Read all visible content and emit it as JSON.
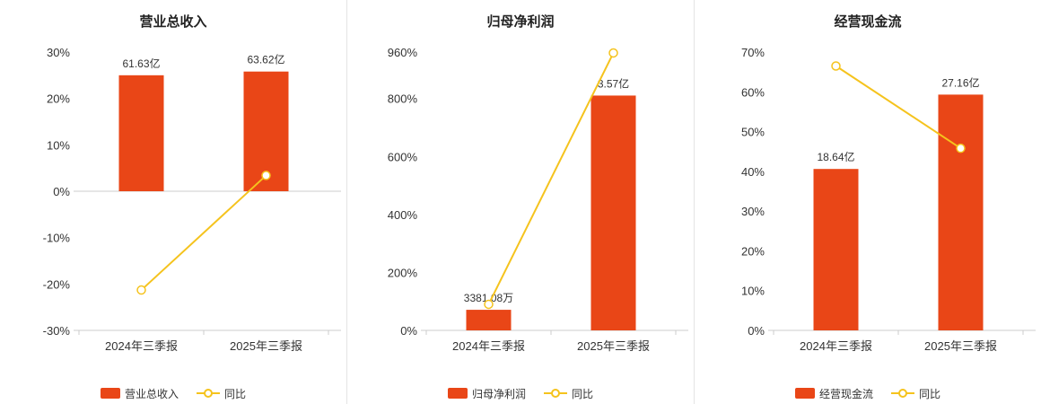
{
  "colors": {
    "bar": "#e94617",
    "line": "#f5c31d",
    "axis": "#cccccc",
    "text": "#333333",
    "title": "#222222",
    "divider": "#e4e4e4",
    "background": "#ffffff"
  },
  "chart_data": [
    {
      "type": "bar",
      "title": "营业总收入",
      "categories": [
        "2024年三季报",
        "2025年三季报"
      ],
      "ylim": [
        -30,
        30
      ],
      "yticks": [
        30,
        20,
        10,
        0,
        -10,
        -20,
        -30
      ],
      "grid": false,
      "legend_position": "bottom",
      "series": [
        {
          "name": "营业总收入",
          "type": "bar",
          "value_labels": [
            "61.63亿",
            "63.62亿"
          ],
          "display_pct": [
            25.0,
            25.8
          ]
        },
        {
          "name": "同比",
          "type": "line",
          "values_pct": [
            -21.3,
            3.4
          ]
        }
      ]
    },
    {
      "type": "bar",
      "title": "归母净利润",
      "categories": [
        "2024年三季报",
        "2025年三季报"
      ],
      "ylim": [
        0,
        960
      ],
      "yticks": [
        960,
        800,
        600,
        400,
        200,
        0
      ],
      "grid": false,
      "legend_position": "bottom",
      "series": [
        {
          "name": "归母净利润",
          "type": "bar",
          "value_labels": [
            "3381.08万",
            "3.57亿"
          ],
          "display_pct": [
            71,
            810
          ]
        },
        {
          "name": "同比",
          "type": "line",
          "values_pct": [
            90,
            957
          ]
        }
      ]
    },
    {
      "type": "bar",
      "title": "经营现金流",
      "categories": [
        "2024年三季报",
        "2025年三季报"
      ],
      "ylim": [
        0,
        70
      ],
      "yticks": [
        70,
        60,
        50,
        40,
        30,
        20,
        10,
        0
      ],
      "grid": false,
      "legend_position": "bottom",
      "series": [
        {
          "name": "经营现金流",
          "type": "bar",
          "value_labels": [
            "18.64亿",
            "27.16亿"
          ],
          "display_pct": [
            40.6,
            59.3
          ]
        },
        {
          "name": "同比",
          "type": "line",
          "values_pct": [
            66.5,
            45.8
          ]
        }
      ]
    }
  ]
}
